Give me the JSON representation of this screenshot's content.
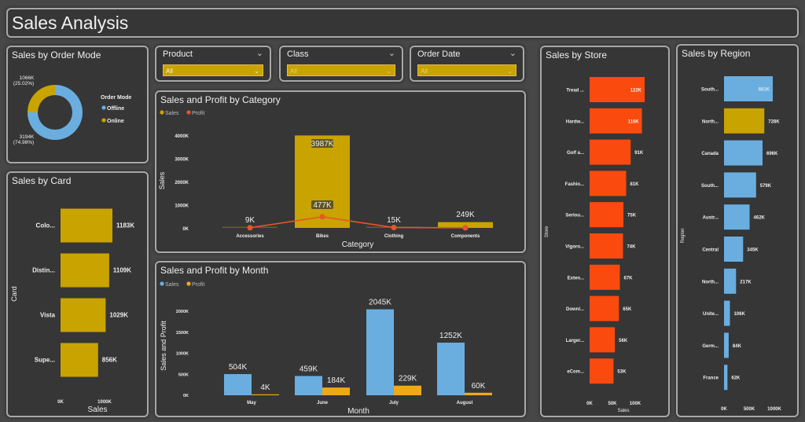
{
  "header": {
    "title": "Sales Analysis"
  },
  "colors": {
    "gold": "#c9a300",
    "blue": "#6aaee0",
    "orange_red": "#fb4a0e",
    "profit_orange": "#f0a818",
    "profit_line": "#e8552a"
  },
  "filters": [
    {
      "label": "Product",
      "value": "All"
    },
    {
      "label": "Class",
      "value": "All"
    },
    {
      "label": "Order Date",
      "value": "All"
    }
  ],
  "chart_data": [
    {
      "id": "order_mode",
      "type": "pie",
      "title": "Sales by Order Mode",
      "legend_title": "Order Mode",
      "legend_position": "right",
      "slices": [
        {
          "name": "Offline",
          "value": 3194,
          "label": "3194K",
          "pct_label": "(74.98%)",
          "color": "#6aaee0"
        },
        {
          "name": "Online",
          "value": 1066,
          "label": "1066K",
          "pct_label": "(25.02%)",
          "color": "#c9a300"
        }
      ]
    },
    {
      "id": "card",
      "type": "bar",
      "orientation": "horizontal",
      "title": "Sales by Card",
      "xlabel": "Sales",
      "ylabel": "Card",
      "xticks": [
        "0K",
        "1000K"
      ],
      "xlim": [
        0,
        1200
      ],
      "categories": [
        "Colo...",
        "Distin...",
        "Vista",
        "Supe..."
      ],
      "values": [
        1183,
        1109,
        1029,
        856
      ],
      "labels": [
        "1183K",
        "1109K",
        "1029K",
        "856K"
      ]
    },
    {
      "id": "category",
      "type": "bar",
      "title": "Sales and Profit by Category",
      "xlabel": "Category",
      "ylabel": "Sales",
      "ylim": [
        0,
        4000
      ],
      "yticks": [
        "0K",
        "1000K",
        "2000K",
        "3000K",
        "4000K"
      ],
      "categories": [
        "Accessories",
        "Bikes",
        "Clothing",
        "Components"
      ],
      "series": [
        {
          "name": "Sales",
          "kind": "bar",
          "values": [
            20,
            3987,
            20,
            249
          ],
          "labels": [
            "",
            "3987K",
            "",
            "249K"
          ]
        },
        {
          "name": "Profit",
          "kind": "line",
          "values": [
            9,
            477,
            15,
            5
          ],
          "labels": [
            "9K",
            "477K",
            "15K",
            ""
          ]
        }
      ]
    },
    {
      "id": "month",
      "type": "bar",
      "title": "Sales and Profit by Month",
      "xlabel": "Month",
      "ylabel": "Sales and Profit",
      "ylim": [
        0,
        2000
      ],
      "yticks": [
        "0K",
        "500K",
        "1000K",
        "1500K",
        "2000K"
      ],
      "categories": [
        "May",
        "June",
        "July",
        "August"
      ],
      "series": [
        {
          "name": "Sales",
          "values": [
            504,
            459,
            2045,
            1252
          ],
          "labels": [
            "504K",
            "459K",
            "2045K",
            "1252K"
          ]
        },
        {
          "name": "Profit",
          "values": [
            4,
            184,
            229,
            60
          ],
          "labels": [
            "4K",
            "184K",
            "229K",
            "60K"
          ]
        }
      ]
    },
    {
      "id": "store",
      "type": "bar",
      "orientation": "horizontal",
      "title": "Sales by Store",
      "xlabel": "Sales",
      "ylabel": "Store",
      "xticks": [
        "0K",
        "50K",
        "100K"
      ],
      "xlim": [
        0,
        125
      ],
      "categories": [
        "Tread ...",
        "Hardw...",
        "Golf a...",
        "Fashio...",
        "Seriou...",
        "Vigoro...",
        "Exten...",
        "Downl...",
        "Larger...",
        "eCom..."
      ],
      "values": [
        122,
        116,
        91,
        81,
        75,
        74,
        67,
        65,
        56,
        53
      ],
      "labels": [
        "122K",
        "116K",
        "91K",
        "81K",
        "75K",
        "74K",
        "67K",
        "65K",
        "56K",
        "53K"
      ]
    },
    {
      "id": "region",
      "type": "bar",
      "orientation": "horizontal",
      "title": "Sales by Region",
      "xlabel": "",
      "ylabel": "Region",
      "xticks": [
        "0K",
        "500K",
        "1000K"
      ],
      "xlim": [
        0,
        1000
      ],
      "categories": [
        "South...",
        "North...",
        "Canada",
        "South...",
        "Austr...",
        "Central",
        "North...",
        "Unite...",
        "Germ...",
        "France"
      ],
      "values": [
        881,
        728,
        696,
        579,
        462,
        345,
        217,
        106,
        84,
        62
      ],
      "labels": [
        "881K",
        "728K",
        "696K",
        "579K",
        "462K",
        "345K",
        "217K",
        "106K",
        "84K",
        "62K"
      ],
      "highlighted": "North..."
    }
  ]
}
